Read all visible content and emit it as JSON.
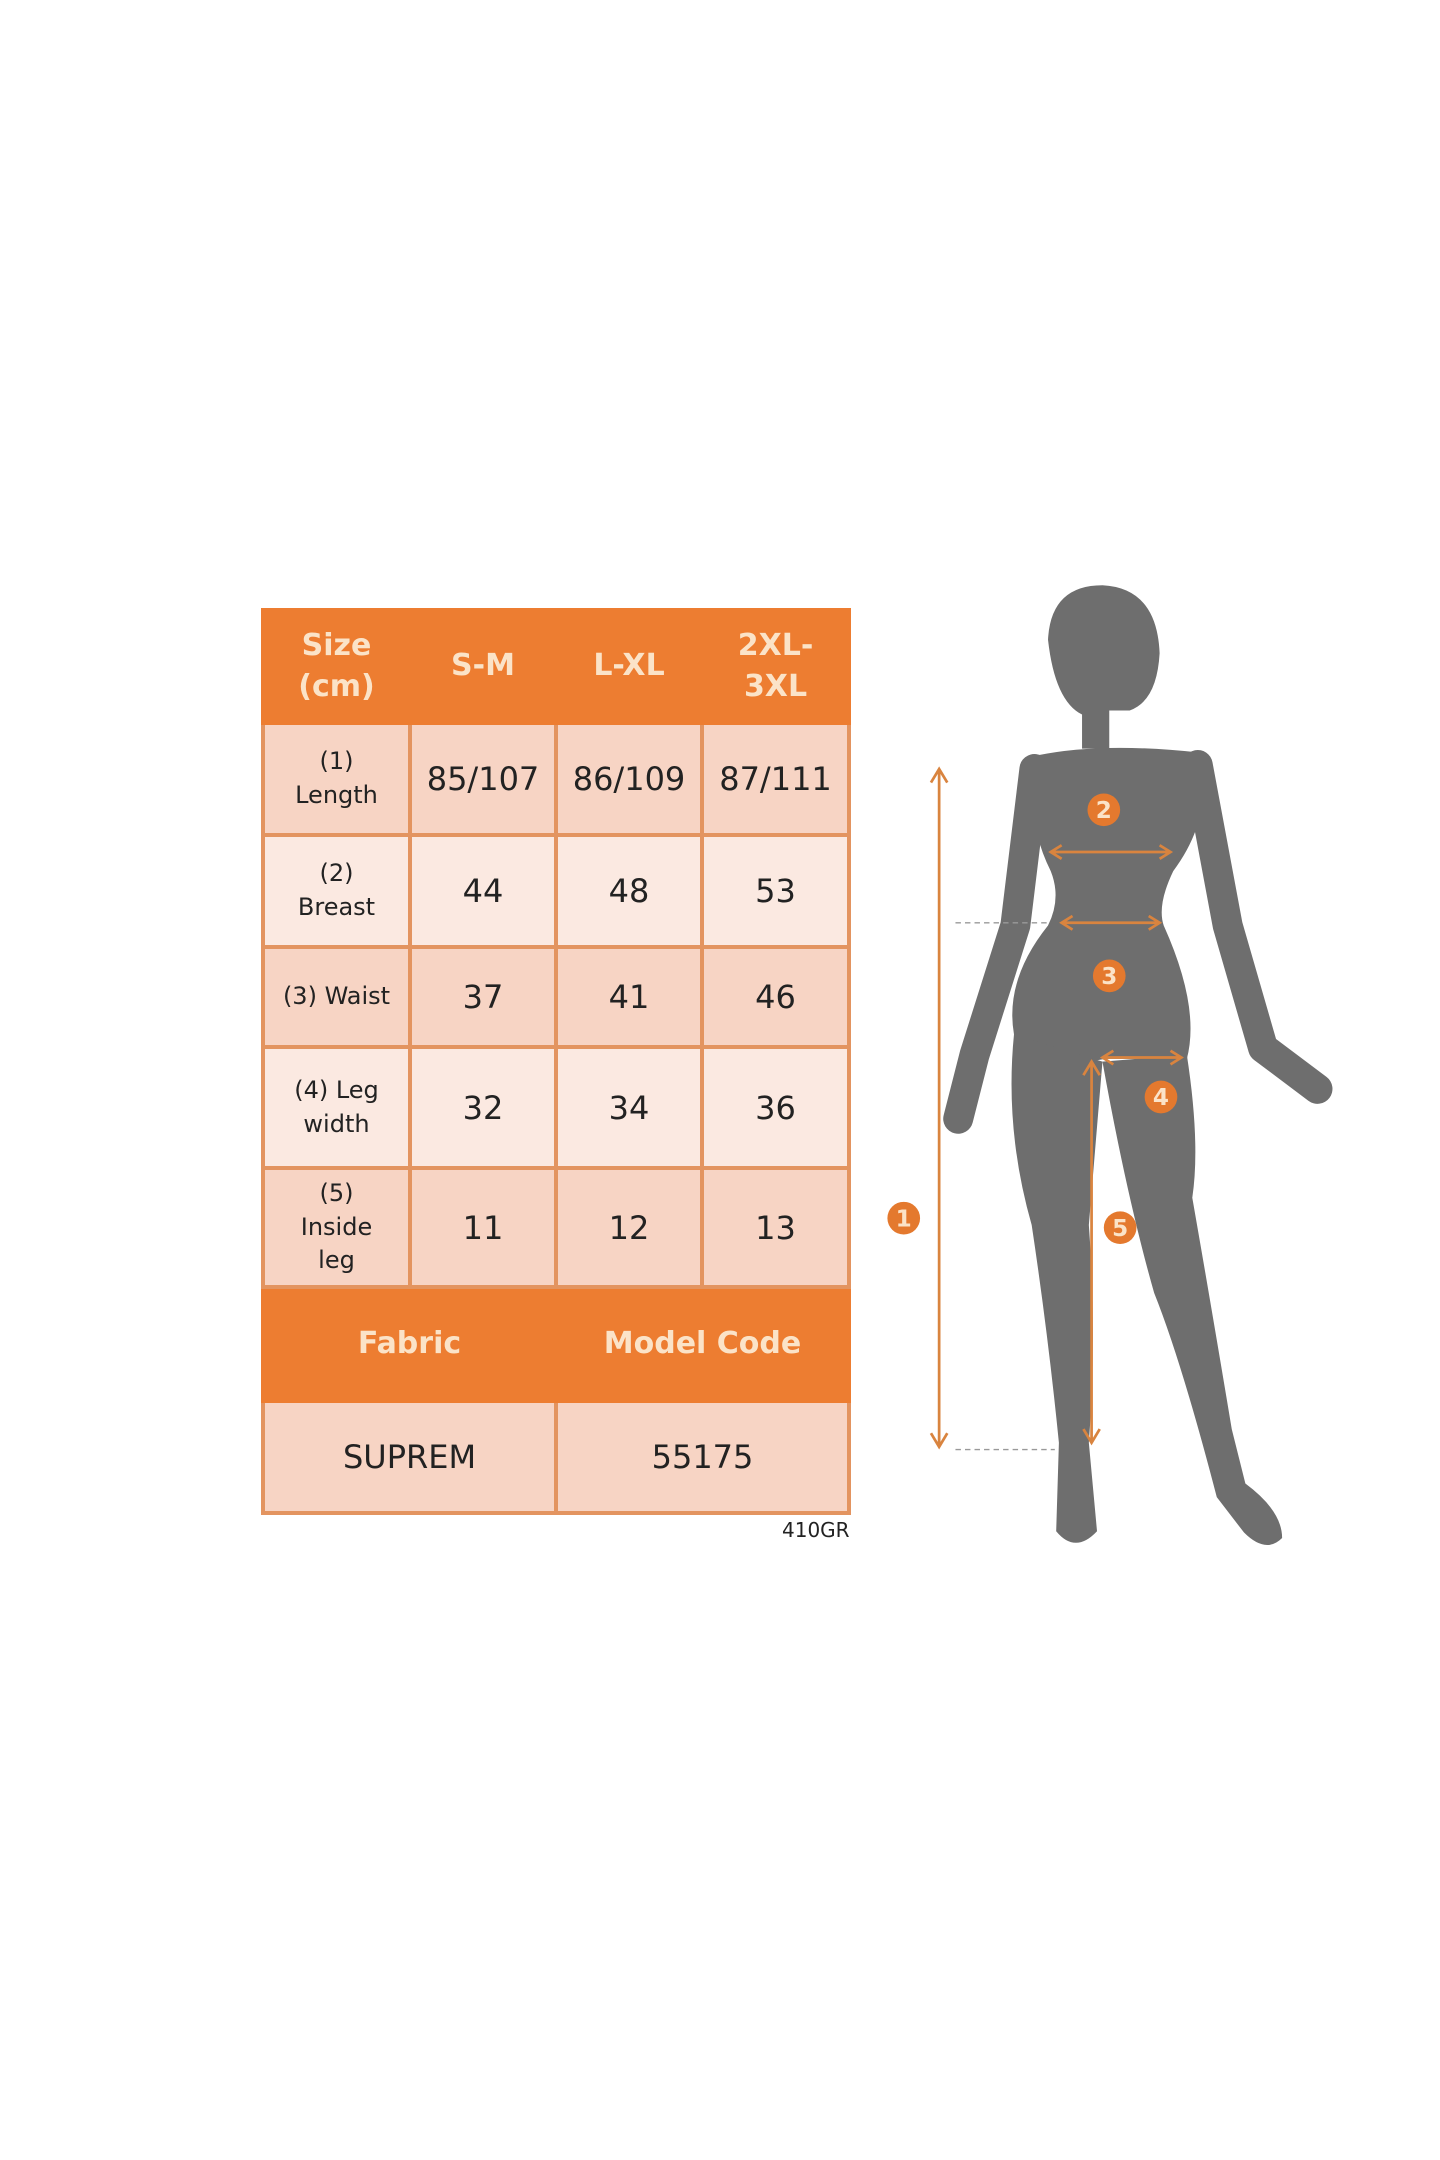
{
  "size_table": {
    "header": [
      "Size\n(cm)",
      "S-M",
      "L-XL",
      "2XL-\n3XL"
    ],
    "rows": [
      {
        "label": "(1)\nLength",
        "values": [
          "85/107",
          "86/109",
          "87/111"
        ]
      },
      {
        "label": "(2)\nBreast",
        "values": [
          "44",
          "48",
          "53"
        ]
      },
      {
        "label": "(3) Waist",
        "values": [
          "37",
          "41",
          "46"
        ]
      },
      {
        "label": "(4) Leg\nwidth",
        "values": [
          "32",
          "34",
          "36"
        ]
      },
      {
        "label": "(5)\nInside\nleg",
        "values": [
          "11",
          "12",
          "13"
        ]
      }
    ],
    "info_header": [
      "Fabric",
      "Model Code"
    ],
    "info_values": [
      "SUPREM",
      "55175"
    ]
  },
  "code_label": "410GR",
  "figure": {
    "markers": [
      "1",
      "2",
      "3",
      "4",
      "5"
    ]
  },
  "colors": {
    "accent": "#ed7d31",
    "silhouette": "#6e6e6e",
    "cell": "#f7d4c4",
    "cell_alt": "#fbe9e1"
  }
}
